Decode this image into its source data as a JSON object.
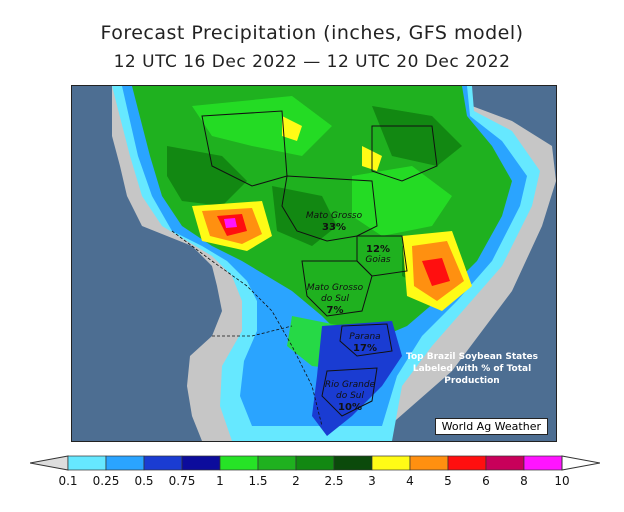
{
  "title": "Forecast Precipitation (inches, GFS model)",
  "subtitle": "12 UTC 16 Dec 2022 — 12 UTC 20 Dec 2022",
  "states": [
    {
      "name": "Mato Grosso",
      "share": "33%"
    },
    {
      "name": "Goias",
      "share": "12%"
    },
    {
      "name": "Mato Grosso do Sul",
      "share": "7%"
    },
    {
      "name": "Parana",
      "share": "17%"
    },
    {
      "name": "Rio Grande do Sul",
      "share": "10%"
    }
  ],
  "note": "Top Brazil Soybean States Labeled with % of Total Production",
  "credit": "World Ag Weather",
  "legend": {
    "ticks": [
      "0.1",
      "0.25",
      "0.5",
      "0.75",
      "1",
      "1.5",
      "2",
      "2.5",
      "3",
      "4",
      "5",
      "6",
      "8",
      "10"
    ],
    "colors": [
      "#66e8ff",
      "#2aa4ff",
      "#1a3cd2",
      "#0c0c9c",
      "#26e326",
      "#1fb11f",
      "#128812",
      "#0b4a0b",
      "#fffb16",
      "#ff9010",
      "#ff0f0f",
      "#c8005a",
      "#ff14ff",
      "#a15af0"
    ],
    "under_color": "#dddddd",
    "over_color": "#ffffff"
  },
  "colors": {
    "ocean": "#4d6e92",
    "land_dry": "#c6c6c6",
    "border": "#111111"
  }
}
